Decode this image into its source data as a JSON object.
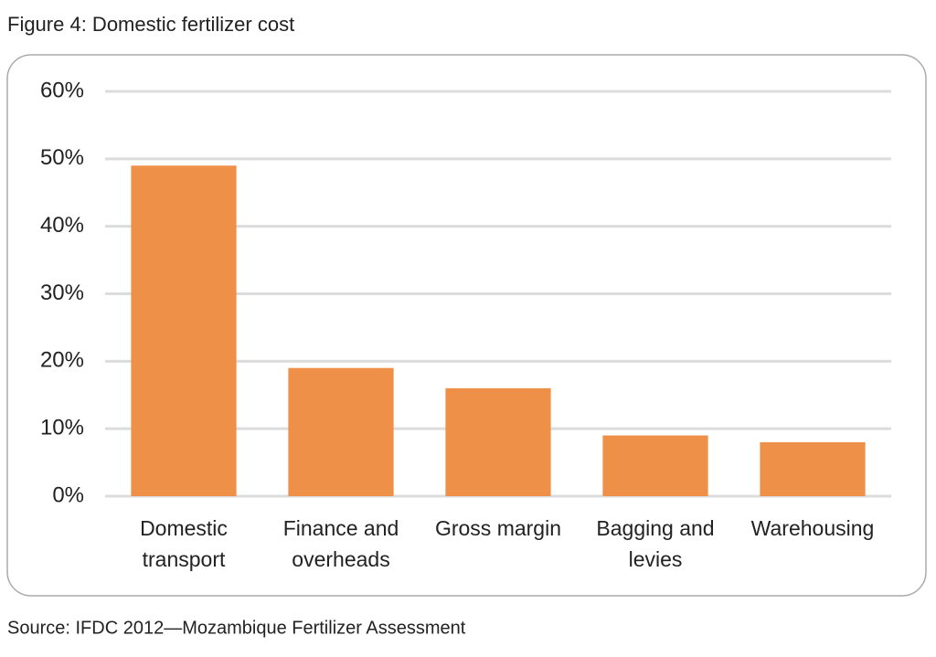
{
  "chart_data": {
    "type": "bar",
    "title": "Figure 4: Domestic fertilizer cost",
    "source": "Source: IFDC 2012—Mozambique Fertilizer Assessment",
    "categories": [
      "Domestic transport",
      "Finance and overheads",
      "Gross margin",
      "Bagging and levies",
      "Warehousing"
    ],
    "values": [
      49,
      19,
      16,
      9,
      8
    ],
    "color": "#ef9049",
    "ylim": [
      0,
      60
    ],
    "yticks": [
      {
        "value": 0,
        "label": "0%"
      },
      {
        "value": 10,
        "label": "10%"
      },
      {
        "value": 20,
        "label": "20%"
      },
      {
        "value": 30,
        "label": "30%"
      },
      {
        "value": 40,
        "label": "40%"
      },
      {
        "value": 50,
        "label": "50%"
      },
      {
        "value": 60,
        "label": "60%"
      }
    ],
    "grid": true
  }
}
